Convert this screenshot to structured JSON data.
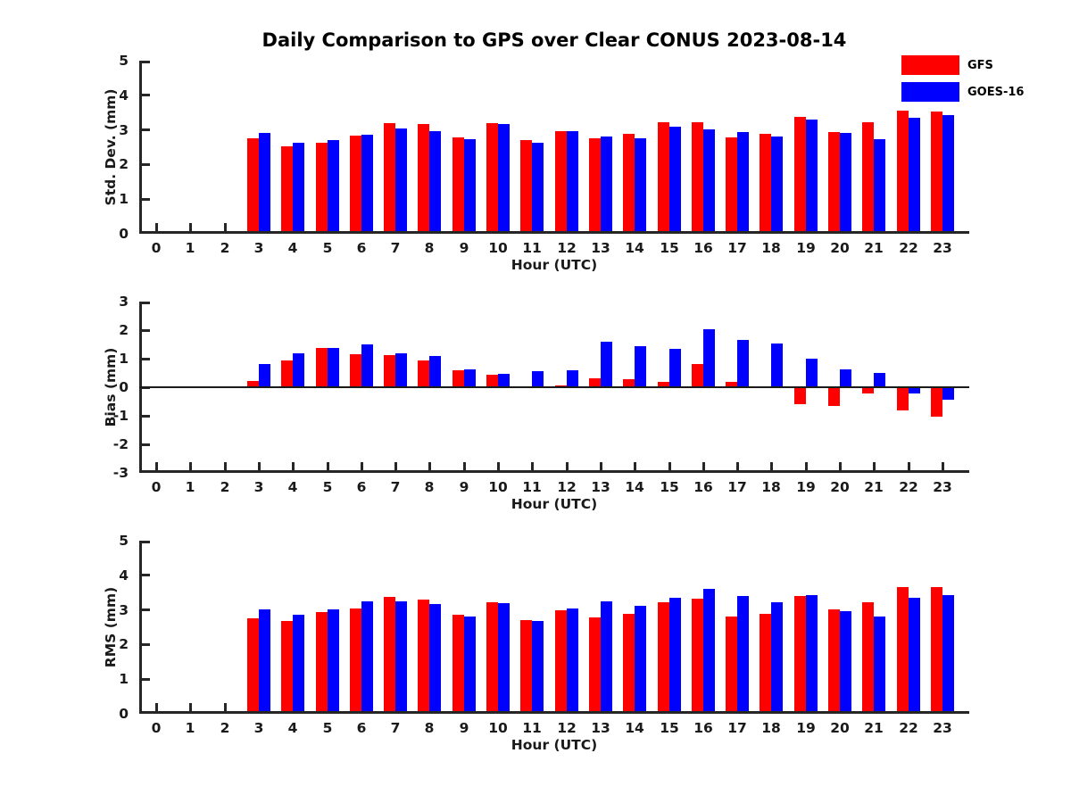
{
  "title": "Daily Comparison to GPS over Clear CONUS 2023-08-14",
  "legend": {
    "position": "top-right",
    "items": [
      {
        "label": "GFS",
        "color": "#ff0000"
      },
      {
        "label": "GOES-16",
        "color": "#0000ff"
      }
    ]
  },
  "colors": {
    "gfs": "#ff0000",
    "goes16": "#0000ff",
    "axis": "#262626",
    "text": "#1a1a1a",
    "background": "#ffffff"
  },
  "chart_data": [
    {
      "type": "bar",
      "ylabel": "Std. Dev. (mm)",
      "xlabel": "Hour (UTC)",
      "ylim": [
        0,
        5
      ],
      "yticks": [
        0,
        1,
        2,
        3,
        4,
        5
      ],
      "grid": false,
      "categories": [
        "0",
        "1",
        "2",
        "3",
        "4",
        "5",
        "6",
        "7",
        "8",
        "9",
        "10",
        "11",
        "12",
        "13",
        "14",
        "15",
        "16",
        "17",
        "18",
        "19",
        "20",
        "21",
        "22",
        "23"
      ],
      "series": [
        {
          "name": "GFS",
          "color": "#ff0000",
          "values": [
            null,
            null,
            null,
            2.75,
            2.52,
            2.62,
            2.83,
            3.2,
            3.17,
            2.79,
            3.2,
            2.71,
            2.97,
            2.76,
            2.88,
            3.22,
            3.21,
            2.78,
            2.89,
            3.38,
            2.94,
            3.22,
            3.56,
            3.52
          ]
        },
        {
          "name": "GOES-16",
          "color": "#0000ff",
          "values": [
            null,
            null,
            null,
            2.9,
            2.63,
            2.7,
            2.87,
            3.05,
            2.96,
            2.74,
            3.16,
            2.64,
            2.97,
            2.81,
            2.76,
            3.08,
            3.01,
            2.93,
            2.81,
            3.3,
            2.9,
            2.74,
            3.36,
            3.42
          ]
        }
      ]
    },
    {
      "type": "bar",
      "ylabel": "Bias (mm)",
      "xlabel": "Hour (UTC)",
      "ylim": [
        -3,
        3
      ],
      "yticks": [
        -3,
        -2,
        -1,
        0,
        1,
        2,
        3
      ],
      "grid": false,
      "zero_line": true,
      "categories": [
        "0",
        "1",
        "2",
        "3",
        "4",
        "5",
        "6",
        "7",
        "8",
        "9",
        "10",
        "11",
        "12",
        "13",
        "14",
        "15",
        "16",
        "17",
        "18",
        "19",
        "20",
        "21",
        "22",
        "23"
      ],
      "series": [
        {
          "name": "GFS",
          "color": "#ff0000",
          "values": [
            null,
            null,
            null,
            0.22,
            0.93,
            1.36,
            1.15,
            1.12,
            0.95,
            0.59,
            0.43,
            0,
            0.07,
            0.3,
            0.28,
            0.18,
            0.8,
            0.18,
            0,
            -0.59,
            -0.65,
            -0.22,
            -0.82,
            -1.02
          ]
        },
        {
          "name": "GOES-16",
          "color": "#0000ff",
          "values": [
            null,
            null,
            null,
            0.8,
            1.18,
            1.38,
            1.49,
            1.18,
            1.1,
            0.64,
            0.47,
            0.56,
            0.58,
            1.6,
            1.43,
            1.33,
            2.02,
            1.67,
            1.52,
            1.01,
            0.63,
            0.5,
            -0.21,
            -0.44
          ]
        }
      ]
    },
    {
      "type": "bar",
      "ylabel": "RMS (mm)",
      "xlabel": "Hour (UTC)",
      "ylim": [
        0,
        5
      ],
      "yticks": [
        0,
        1,
        2,
        3,
        4,
        5
      ],
      "grid": false,
      "categories": [
        "0",
        "1",
        "2",
        "3",
        "4",
        "5",
        "6",
        "7",
        "8",
        "9",
        "10",
        "11",
        "12",
        "13",
        "14",
        "15",
        "16",
        "17",
        "18",
        "19",
        "20",
        "21",
        "22",
        "23"
      ],
      "series": [
        {
          "name": "GFS",
          "color": "#ff0000",
          "values": [
            null,
            null,
            null,
            2.75,
            2.68,
            2.95,
            3.03,
            3.37,
            3.31,
            2.87,
            3.22,
            2.71,
            2.98,
            2.78,
            2.89,
            3.22,
            3.32,
            2.81,
            2.89,
            3.41,
            3.02,
            3.21,
            3.65,
            3.65
          ]
        },
        {
          "name": "GOES-16",
          "color": "#0000ff",
          "values": [
            null,
            null,
            null,
            3.01,
            2.86,
            3.01,
            3.24,
            3.26,
            3.16,
            2.81,
            3.2,
            2.68,
            3.03,
            3.25,
            3.12,
            3.34,
            3.62,
            3.4,
            3.21,
            3.44,
            2.96,
            2.81,
            3.35,
            3.44
          ]
        }
      ]
    }
  ]
}
